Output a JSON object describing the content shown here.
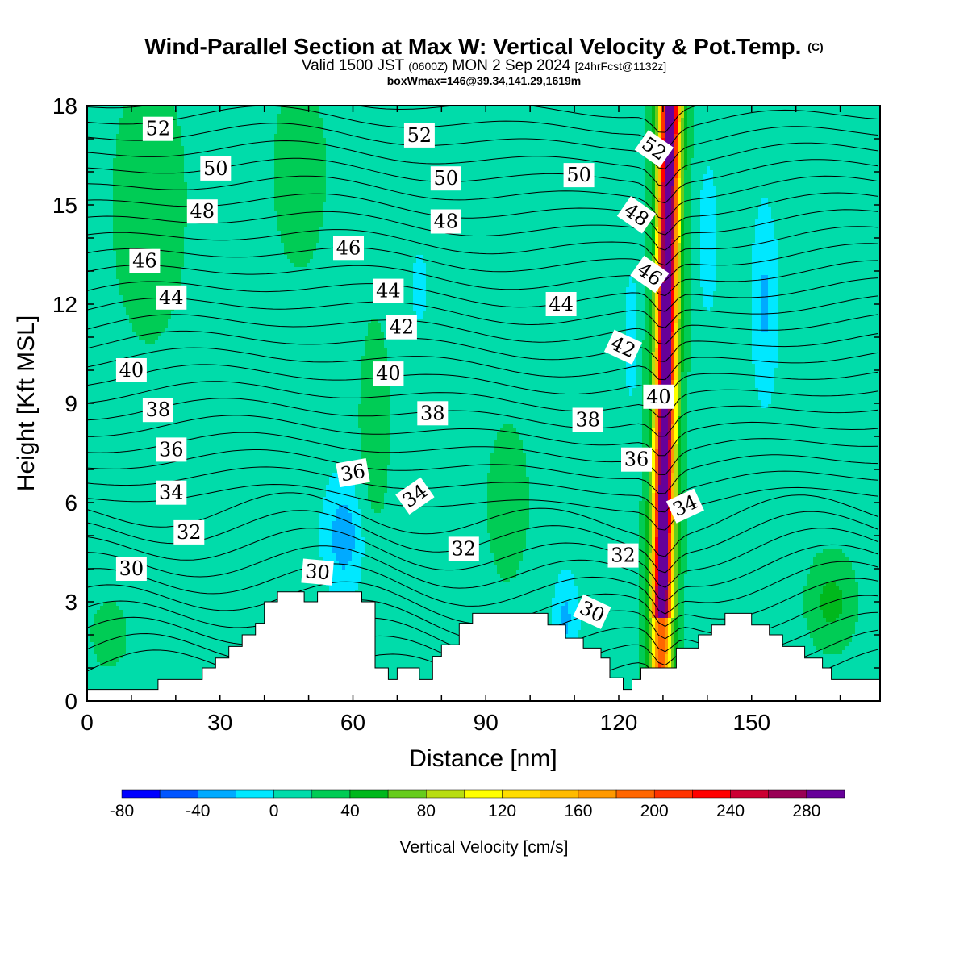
{
  "header": {
    "title": "Wind-Parallel Section at Max W: Vertical Velocity & Pot.Temp.",
    "copyright": "(C)",
    "valid_prefix": "Valid 1500 JST",
    "valid_utc": "(0600Z)",
    "valid_date": "MON 2 Sep 2024",
    "forecast": "[24hrFcst@1132z]",
    "box_info": "boxWmax=146@39.34,141.29,1619m"
  },
  "chart_data": {
    "type": "heatmap",
    "xlabel": "Distance [nm]",
    "ylabel": "Height [Kft MSL]",
    "xlim": [
      0,
      179
    ],
    "ylim": [
      0,
      18
    ],
    "x_ticks": [
      0,
      30,
      60,
      90,
      120,
      150
    ],
    "y_ticks": [
      0,
      3,
      6,
      9,
      12,
      15,
      18
    ],
    "colorbar": {
      "label": "Vertical Velocity [cm/s]",
      "tick_labels": [
        -80,
        -40,
        0,
        40,
        80,
        120,
        160,
        200,
        240,
        280
      ],
      "levels": [
        -80,
        -60,
        -40,
        -20,
        0,
        20,
        40,
        60,
        80,
        100,
        120,
        140,
        160,
        180,
        200,
        220,
        240,
        260,
        280,
        300
      ],
      "colors": [
        "#0000ff",
        "#0055ff",
        "#00aaff",
        "#00e8ff",
        "#00dcaa",
        "#00cc55",
        "#00b81c",
        "#66cc1c",
        "#b8dd10",
        "#ffff00",
        "#ffdd00",
        "#ffbb00",
        "#ff9900",
        "#ff6600",
        "#ff3300",
        "#ff0000",
        "#cc0033",
        "#990055",
        "#660099"
      ]
    },
    "theta_contour_labels": [
      {
        "value": "52",
        "x": 16,
        "y": 17.3
      },
      {
        "value": "52",
        "x": 75,
        "y": 17.1
      },
      {
        "value": "52",
        "x": 128,
        "y": 16.7,
        "angle": 35
      },
      {
        "value": "50",
        "x": 29,
        "y": 16.1
      },
      {
        "value": "50",
        "x": 81,
        "y": 15.8
      },
      {
        "value": "50",
        "x": 111,
        "y": 15.9
      },
      {
        "value": "48",
        "x": 26,
        "y": 14.8
      },
      {
        "value": "48",
        "x": 81,
        "y": 14.5
      },
      {
        "value": "48",
        "x": 124,
        "y": 14.7,
        "angle": 35
      },
      {
        "value": "46",
        "x": 13,
        "y": 13.3
      },
      {
        "value": "46",
        "x": 59,
        "y": 13.7
      },
      {
        "value": "46",
        "x": 127,
        "y": 12.9,
        "angle": 35
      },
      {
        "value": "44",
        "x": 19,
        "y": 12.2
      },
      {
        "value": "44",
        "x": 68,
        "y": 12.4
      },
      {
        "value": "44",
        "x": 107,
        "y": 12.0
      },
      {
        "value": "42",
        "x": 71,
        "y": 11.3
      },
      {
        "value": "42",
        "x": 121,
        "y": 10.7,
        "angle": 25
      },
      {
        "value": "40",
        "x": 10,
        "y": 10.0
      },
      {
        "value": "40",
        "x": 68,
        "y": 9.9
      },
      {
        "value": "40",
        "x": 129,
        "y": 9.2
      },
      {
        "value": "38",
        "x": 16,
        "y": 8.8
      },
      {
        "value": "38",
        "x": 78,
        "y": 8.7
      },
      {
        "value": "38",
        "x": 113,
        "y": 8.5
      },
      {
        "value": "36",
        "x": 19,
        "y": 7.6
      },
      {
        "value": "36",
        "x": 60,
        "y": 6.9,
        "angle": -10
      },
      {
        "value": "36",
        "x": 124,
        "y": 7.3
      },
      {
        "value": "34",
        "x": 19,
        "y": 6.3
      },
      {
        "value": "34",
        "x": 74,
        "y": 6.2,
        "angle": -35
      },
      {
        "value": "34",
        "x": 135,
        "y": 5.9,
        "angle": -25
      },
      {
        "value": "32",
        "x": 23,
        "y": 5.1
      },
      {
        "value": "32",
        "x": 85,
        "y": 4.6
      },
      {
        "value": "32",
        "x": 121,
        "y": 4.4
      },
      {
        "value": "30",
        "x": 10,
        "y": 4.0
      },
      {
        "value": "30",
        "x": 52,
        "y": 3.9,
        "angle": 5
      },
      {
        "value": "30",
        "x": 114,
        "y": 2.7,
        "angle": 25
      }
    ],
    "max_updraft": {
      "x_range": [
        124,
        135
      ],
      "z_range": [
        0.5,
        18
      ],
      "peak_cm_s": 280
    },
    "notes": [
      "Terrain masked in white below surface"
    ]
  }
}
